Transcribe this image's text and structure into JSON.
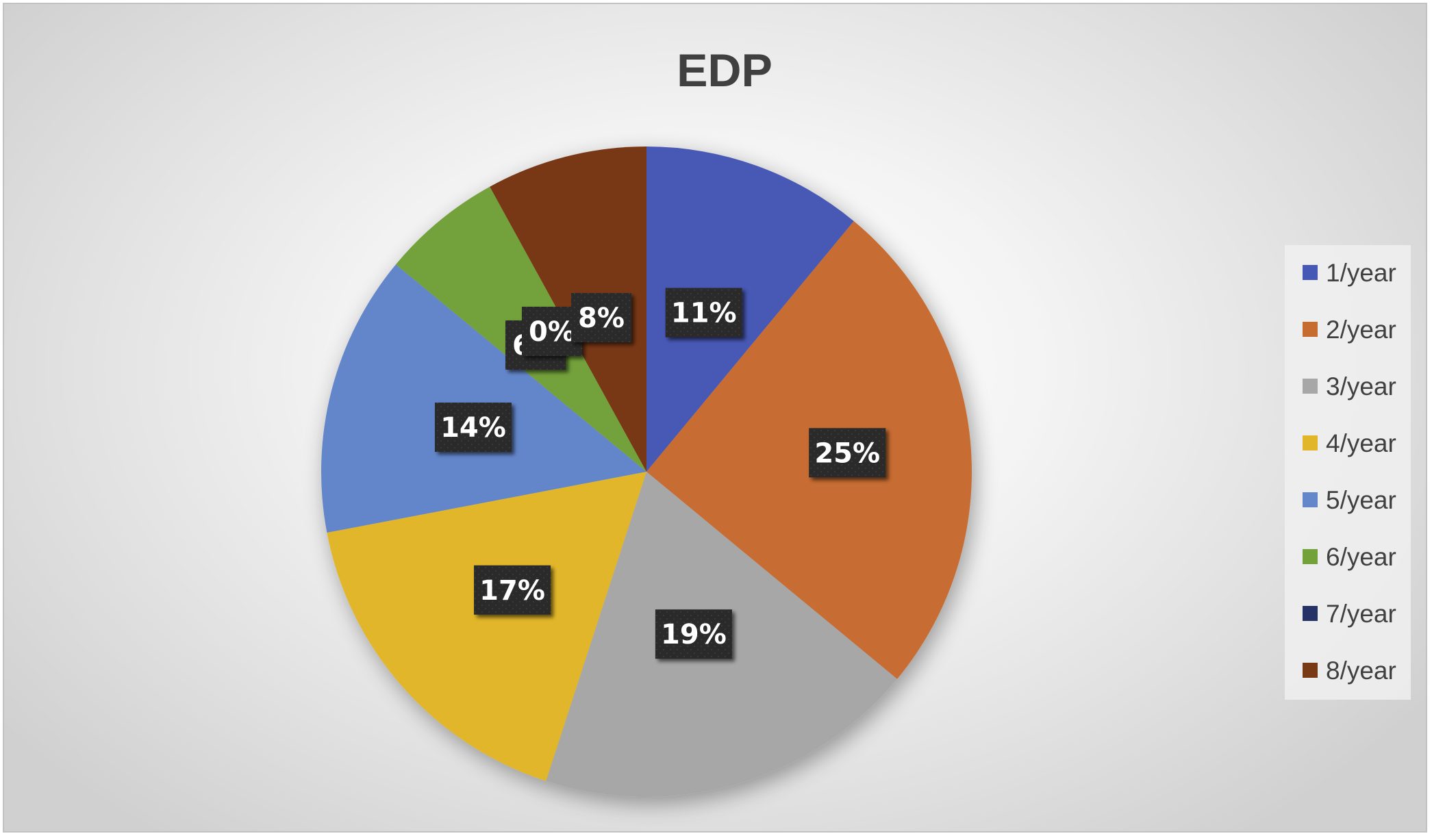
{
  "chart_data": {
    "type": "pie",
    "title": "EDP",
    "start_angle_deg": 0,
    "direction": "clockwise",
    "legend_position": "right",
    "slices": [
      {
        "label": "1/year",
        "value": 11,
        "display": "11%",
        "color": "#4658b5"
      },
      {
        "label": "2/year",
        "value": 25,
        "display": "25%",
        "color": "#c76c30"
      },
      {
        "label": "3/year",
        "value": 19,
        "display": "19%",
        "color": "#a7a7a7"
      },
      {
        "label": "4/year",
        "value": 17,
        "display": "17%",
        "color": "#e1b629"
      },
      {
        "label": "5/year",
        "value": 14,
        "display": "14%",
        "color": "#6486cb"
      },
      {
        "label": "6/year",
        "value": 6,
        "display": "6%",
        "color": "#73a13a"
      },
      {
        "label": "7/year",
        "value": 0,
        "display": "0%",
        "color": "#243266"
      },
      {
        "label": "8/year",
        "value": 8,
        "display": "8%",
        "color": "#783915"
      }
    ]
  }
}
